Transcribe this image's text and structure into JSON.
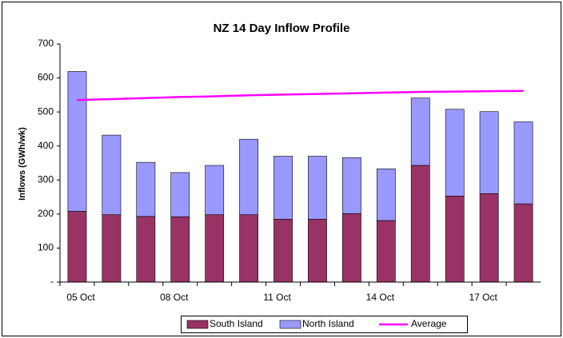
{
  "chart_data": {
    "type": "stacked_bar",
    "title": "NZ 14 Day Inflow Profile",
    "y_label": "Inflows (GWh/wk)",
    "categories": [
      "05 Oct",
      null,
      null,
      "08 Oct",
      null,
      null,
      "11 Oct",
      null,
      null,
      "14 Oct",
      null,
      null,
      "17 Oct",
      null
    ],
    "series": [
      {
        "name": "South Island",
        "color": "#993366",
        "values": [
          208,
          198,
          193,
          192,
          198,
          198,
          185,
          185,
          201,
          181,
          343,
          253,
          260,
          230
        ]
      },
      {
        "name": "North Island",
        "color": "#9999ff",
        "values": [
          411,
          234,
          159,
          130,
          145,
          222,
          185,
          185,
          165,
          152,
          198,
          255,
          241,
          241
        ]
      },
      {
        "name": "Average",
        "color": "#ff00ff",
        "kind": "line",
        "values": [
          535,
          538,
          541,
          544,
          546,
          549,
          551,
          553,
          555,
          557,
          559,
          560,
          561,
          562
        ]
      }
    ],
    "ylim": [
      0,
      700
    ],
    "yticks": [
      {
        "value": 0,
        "label": "-"
      },
      100,
      200,
      300,
      400,
      500,
      600,
      700
    ],
    "legend": "bottom"
  }
}
